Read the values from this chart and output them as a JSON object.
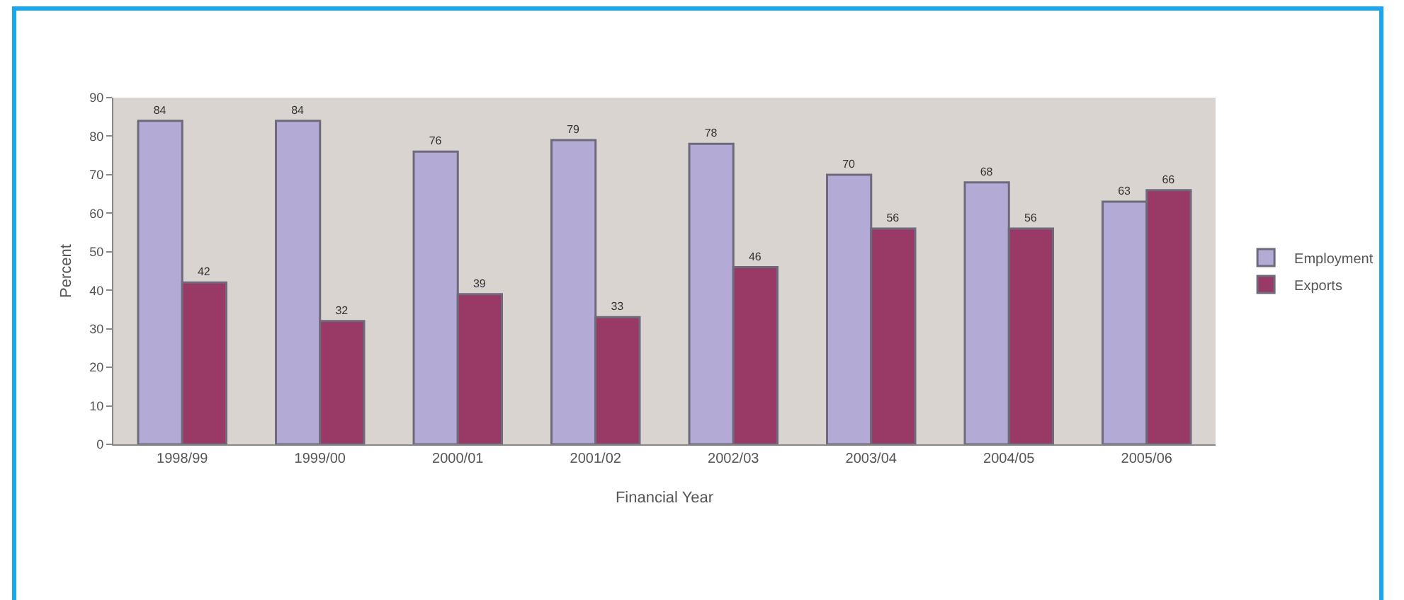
{
  "chart_data": {
    "type": "bar",
    "xlabel": "Financial Year",
    "ylabel": "Percent",
    "categories": [
      "1998/99",
      "1999/00",
      "2000/01",
      "2001/02",
      "2002/03",
      "2003/04",
      "2004/05",
      "2005/06"
    ],
    "series": [
      {
        "name": "Employment",
        "color": "#b3abd6",
        "values": [
          84,
          84,
          76,
          79,
          78,
          70,
          68,
          63
        ]
      },
      {
        "name": "Exports",
        "color": "#993a66",
        "values": [
          42,
          32,
          39,
          33,
          46,
          56,
          56,
          66
        ]
      }
    ],
    "ylim": [
      0,
      90
    ],
    "yticks": [
      0,
      10,
      20,
      30,
      40,
      50,
      60,
      70,
      80,
      90
    ],
    "legend": "right",
    "data_labels": true
  }
}
